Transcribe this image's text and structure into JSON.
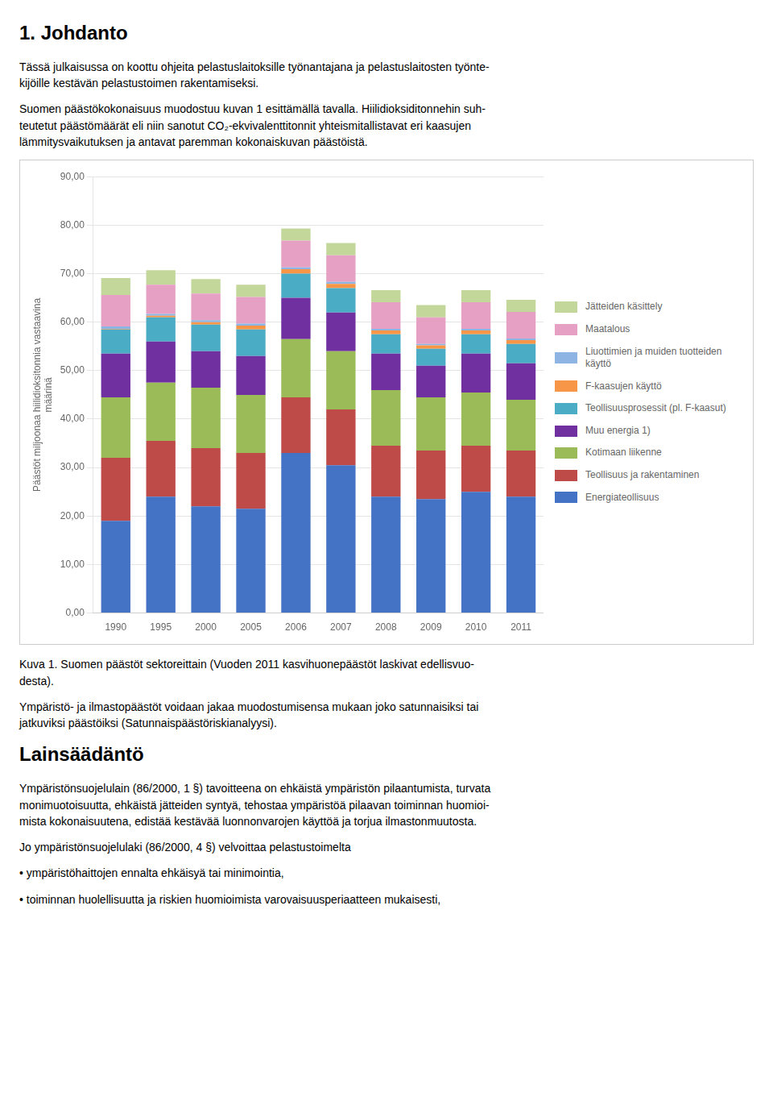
{
  "chart_data": {
    "type": "bar",
    "stacked": true,
    "categories": [
      "1990",
      "1995",
      "2000",
      "2005",
      "2006",
      "2007",
      "2008",
      "2009",
      "2010",
      "2011"
    ],
    "series": [
      {
        "name": "Energiateollisuus",
        "color": "#4472C4",
        "values": [
          19.0,
          24.0,
          22.0,
          21.5,
          33.0,
          30.5,
          24.0,
          23.5,
          25.0,
          24.0
        ]
      },
      {
        "name": "Teollisuus ja rakentaminen",
        "color": "#BE4B48",
        "values": [
          13.0,
          11.5,
          12.0,
          11.5,
          11.5,
          11.5,
          10.5,
          10.0,
          9.5,
          9.5
        ]
      },
      {
        "name": "Kotimaan liikenne",
        "color": "#9BBB59",
        "values": [
          12.5,
          12.0,
          12.5,
          12.0,
          12.0,
          12.0,
          11.5,
          11.0,
          11.0,
          10.5
        ]
      },
      {
        "name": "Muu energia 1)",
        "color": "#7030A0",
        "values": [
          9.0,
          8.5,
          7.5,
          8.0,
          8.5,
          8.0,
          7.5,
          6.5,
          8.0,
          7.5
        ]
      },
      {
        "name": "Teollisuusprosessit (pl. F-kaasut)",
        "color": "#4BACC6",
        "values": [
          5.0,
          5.0,
          5.5,
          5.5,
          5.0,
          5.0,
          4.0,
          3.5,
          4.0,
          4.0
        ]
      },
      {
        "name": "F-kaasujen käyttö",
        "color": "#F79646",
        "values": [
          0.1,
          0.3,
          0.5,
          0.8,
          0.9,
          0.9,
          0.8,
          0.7,
          0.8,
          0.8
        ]
      },
      {
        "name": "Liuottimien ja muiden tuotteiden\nkäyttö",
        "color": "#8DB4E2",
        "values": [
          0.5,
          0.4,
          0.4,
          0.4,
          0.4,
          0.4,
          0.3,
          0.3,
          0.3,
          0.3
        ]
      },
      {
        "name": "Maatalous",
        "color": "#E6A0C4",
        "values": [
          6.5,
          6.0,
          5.5,
          5.5,
          5.5,
          5.5,
          5.5,
          5.5,
          5.5,
          5.5
        ]
      },
      {
        "name": "Jätteiden käsittely",
        "color": "#C4D79B",
        "values": [
          3.5,
          3.0,
          3.0,
          2.5,
          2.5,
          2.5,
          2.5,
          2.5,
          2.5,
          2.5
        ]
      }
    ],
    "y_label": "Päästöt miljoonaa hiilidioksitonnia vastaavina\nmäärinä",
    "ylim": [
      0,
      90
    ],
    "yticks": [
      {
        "value": 0,
        "label": "0,00"
      },
      {
        "value": 10,
        "label": "10,00"
      },
      {
        "value": 20,
        "label": "20,00"
      },
      {
        "value": 30,
        "label": "30,00"
      },
      {
        "value": 40,
        "label": "40,00"
      },
      {
        "value": 50,
        "label": "50,00"
      },
      {
        "value": 60,
        "label": "60,00"
      },
      {
        "value": 70,
        "label": "70,00"
      },
      {
        "value": 80,
        "label": "80,00"
      },
      {
        "value": 90,
        "label": "90,00"
      }
    ],
    "grid": true,
    "legend": "right",
    "annotations": [
      "1. Johdanto",
      "Tässä julkaisussa on koottu ohjeita pelastuslaitoksille työnantajana ja pelastuslaitosten työnte-\nkijöille kestävän pelastustoimen rakentamiseksi.",
      "Suomen päästökokonaisuus muodostuu kuvan 1 esittämällä tavalla. Hiilidioksiditonnehin suh-\nteutetut päästömäärät eli niin sanotut CO₂-ekvivalenttitonnit yhteismitallistavat eri kaasujen\nlämmitysvaikutuksen ja antavat paremman kokonaiskuvan päästöistä.",
      "Kuva 1. Suomen päästöt sektoreittain (Vuoden 2011 kasvihuonepäästöt laskivat edellisvuo-\ndesta).",
      "Ympäristö- ja ilmastopäästöt voidaan jakaa muodostumisensa mukaan joko satunnaisiksi tai\njatkuviksi päästöiksi (Satunnaispäästöriskianalyysi).",
      "Lainsäädäntö",
      "Ympäristönsuojelulain (86/2000, 1 §) tavoitteena on ehkäistä ympäristön pilaantumista, turvata\nmonimuotoisuutta, ehkäistä jätteiden syntyä, tehostaa ympäristöä pilaavan toiminnan huomioi-\nmista kokonaisuutena, edistää kestävää luonnonvarojen käyttöä ja torjua ilmastonmuutosta.",
      "Jo ympäristönsuojelulaki (86/2000, 4 §) velvoittaa pelastustoimelta",
      "•  ympäristöhaittojen ennalta ehkäisyä tai minimointia,",
      "•  toiminnan huolellisuutta ja riskien huomioimista varovaisuusperiaatteen mukaisesti,"
    ]
  }
}
